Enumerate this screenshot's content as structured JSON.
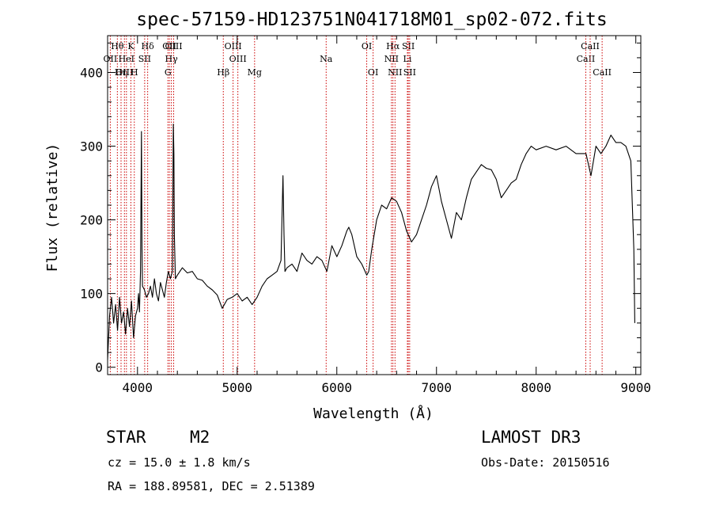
{
  "chart_data": {
    "type": "line",
    "title": "spec-57159-HD123751N041718M01_sp02-072.fits",
    "xlabel": "Wavelength (Å)",
    "ylabel": "Flux (relative)",
    "xlim": [
      3700,
      9050
    ],
    "ylim": [
      -10,
      450
    ],
    "x_ticks": [
      4000,
      5000,
      6000,
      7000,
      8000,
      9000
    ],
    "y_ticks": [
      0,
      100,
      200,
      300,
      400
    ],
    "grid": false,
    "series": [
      {
        "name": "flux",
        "points": [
          [
            3700,
            10
          ],
          [
            3720,
            70
          ],
          [
            3740,
            95
          ],
          [
            3760,
            60
          ],
          [
            3780,
            85
          ],
          [
            3800,
            50
          ],
          [
            3820,
            95
          ],
          [
            3840,
            60
          ],
          [
            3860,
            75
          ],
          [
            3880,
            45
          ],
          [
            3900,
            80
          ],
          [
            3920,
            55
          ],
          [
            3940,
            90
          ],
          [
            3960,
            40
          ],
          [
            3980,
            70
          ],
          [
            4000,
            80
          ],
          [
            4010,
            100
          ],
          [
            4020,
            75
          ],
          [
            4030,
            130
          ],
          [
            4040,
            320
          ],
          [
            4045,
            160
          ],
          [
            4050,
            110
          ],
          [
            4070,
            105
          ],
          [
            4090,
            95
          ],
          [
            4110,
            100
          ],
          [
            4130,
            110
          ],
          [
            4150,
            95
          ],
          [
            4170,
            120
          ],
          [
            4190,
            100
          ],
          [
            4210,
            90
          ],
          [
            4230,
            115
          ],
          [
            4250,
            105
          ],
          [
            4270,
            95
          ],
          [
            4290,
            115
          ],
          [
            4310,
            130
          ],
          [
            4330,
            120
          ],
          [
            4350,
            130
          ],
          [
            4360,
            330
          ],
          [
            4365,
            290
          ],
          [
            4370,
            180
          ],
          [
            4380,
            120
          ],
          [
            4400,
            125
          ],
          [
            4450,
            135
          ],
          [
            4500,
            128
          ],
          [
            4550,
            130
          ],
          [
            4600,
            120
          ],
          [
            4650,
            118
          ],
          [
            4700,
            110
          ],
          [
            4750,
            105
          ],
          [
            4800,
            98
          ],
          [
            4850,
            80
          ],
          [
            4900,
            92
          ],
          [
            4950,
            95
          ],
          [
            5000,
            100
          ],
          [
            5050,
            90
          ],
          [
            5100,
            95
          ],
          [
            5150,
            85
          ],
          [
            5200,
            95
          ],
          [
            5250,
            110
          ],
          [
            5300,
            120
          ],
          [
            5350,
            125
          ],
          [
            5400,
            130
          ],
          [
            5440,
            145
          ],
          [
            5460,
            260
          ],
          [
            5470,
            180
          ],
          [
            5480,
            130
          ],
          [
            5500,
            135
          ],
          [
            5550,
            140
          ],
          [
            5600,
            130
          ],
          [
            5650,
            155
          ],
          [
            5700,
            145
          ],
          [
            5750,
            140
          ],
          [
            5800,
            150
          ],
          [
            5850,
            145
          ],
          [
            5900,
            130
          ],
          [
            5950,
            165
          ],
          [
            6000,
            150
          ],
          [
            6050,
            165
          ],
          [
            6100,
            185
          ],
          [
            6120,
            190
          ],
          [
            6150,
            180
          ],
          [
            6200,
            150
          ],
          [
            6250,
            140
          ],
          [
            6300,
            125
          ],
          [
            6320,
            130
          ],
          [
            6350,
            160
          ],
          [
            6400,
            200
          ],
          [
            6450,
            220
          ],
          [
            6500,
            215
          ],
          [
            6550,
            230
          ],
          [
            6600,
            225
          ],
          [
            6650,
            210
          ],
          [
            6700,
            185
          ],
          [
            6750,
            170
          ],
          [
            6800,
            180
          ],
          [
            6850,
            200
          ],
          [
            6900,
            220
          ],
          [
            6950,
            245
          ],
          [
            7000,
            260
          ],
          [
            7050,
            225
          ],
          [
            7100,
            200
          ],
          [
            7150,
            175
          ],
          [
            7200,
            210
          ],
          [
            7250,
            200
          ],
          [
            7300,
            230
          ],
          [
            7350,
            255
          ],
          [
            7400,
            265
          ],
          [
            7450,
            275
          ],
          [
            7500,
            270
          ],
          [
            7550,
            268
          ],
          [
            7600,
            255
          ],
          [
            7650,
            230
          ],
          [
            7700,
            240
          ],
          [
            7750,
            250
          ],
          [
            7800,
            255
          ],
          [
            7850,
            275
          ],
          [
            7900,
            290
          ],
          [
            7950,
            300
          ],
          [
            8000,
            295
          ],
          [
            8100,
            300
          ],
          [
            8200,
            295
          ],
          [
            8300,
            300
          ],
          [
            8400,
            290
          ],
          [
            8500,
            290
          ],
          [
            8550,
            260
          ],
          [
            8600,
            300
          ],
          [
            8650,
            290
          ],
          [
            8700,
            300
          ],
          [
            8750,
            315
          ],
          [
            8800,
            305
          ],
          [
            8850,
            305
          ],
          [
            8900,
            300
          ],
          [
            8950,
            280
          ],
          [
            8980,
            160
          ],
          [
            8990,
            60
          ]
        ]
      }
    ],
    "line_markers": [
      {
        "label": "Hθ",
        "wavelength": 3798,
        "row": 0
      },
      {
        "label": "OII",
        "wavelength": 3727,
        "row": 1
      },
      {
        "label": "OIII",
        "wavelength": 3869,
        "row": 2
      },
      {
        "label": "Hη",
        "wavelength": 3835,
        "row": 2
      },
      {
        "label": "HeI",
        "wavelength": 3889,
        "row": 1
      },
      {
        "label": "K",
        "wavelength": 3934,
        "row": 0
      },
      {
        "label": "H",
        "wavelength": 3968,
        "row": 2
      },
      {
        "label": "SII",
        "wavelength": 4072,
        "row": 1
      },
      {
        "label": "Hδ",
        "wavelength": 4102,
        "row": 0
      },
      {
        "label": "OII",
        "wavelength": 4320,
        "row": 0
      },
      {
        "label": "Hγ",
        "wavelength": 4340,
        "row": 1
      },
      {
        "label": "G",
        "wavelength": 4305,
        "row": 2
      },
      {
        "label": "OIII",
        "wavelength": 4363,
        "row": 0
      },
      {
        "label": "OIII",
        "wavelength": 4959,
        "row": 0
      },
      {
        "label": "OIII",
        "wavelength": 5007,
        "row": 1
      },
      {
        "label": "Hβ",
        "wavelength": 4861,
        "row": 2
      },
      {
        "label": "Mg",
        "wavelength": 5175,
        "row": 2
      },
      {
        "label": "Na",
        "wavelength": 5893,
        "row": 1
      },
      {
        "label": "OI",
        "wavelength": 6300,
        "row": 0
      },
      {
        "label": "OI",
        "wavelength": 6364,
        "row": 2
      },
      {
        "label": "Hα",
        "wavelength": 6563,
        "row": 0
      },
      {
        "label": "NII",
        "wavelength": 6548,
        "row": 1
      },
      {
        "label": "NII",
        "wavelength": 6584,
        "row": 2
      },
      {
        "label": "SII",
        "wavelength": 6717,
        "row": 0
      },
      {
        "label": "Li",
        "wavelength": 6708,
        "row": 1
      },
      {
        "label": "SII",
        "wavelength": 6731,
        "row": 2
      },
      {
        "label": "CaII",
        "wavelength": 8498,
        "row": 1
      },
      {
        "label": "CaII",
        "wavelength": 8542,
        "row": 0
      },
      {
        "label": "CaII",
        "wavelength": 8662,
        "row": 2
      }
    ],
    "marker_color": "#cc0000",
    "line_color": "#000000"
  },
  "info": {
    "object_type": "STAR",
    "subclass": "M2",
    "survey": "LAMOST DR3",
    "redshift": "cz = 15.0 ± 1.8 km/s",
    "obs_date": "Obs-Date: 20150516",
    "coords": "RA = 188.89581, DEC =   2.51389"
  }
}
